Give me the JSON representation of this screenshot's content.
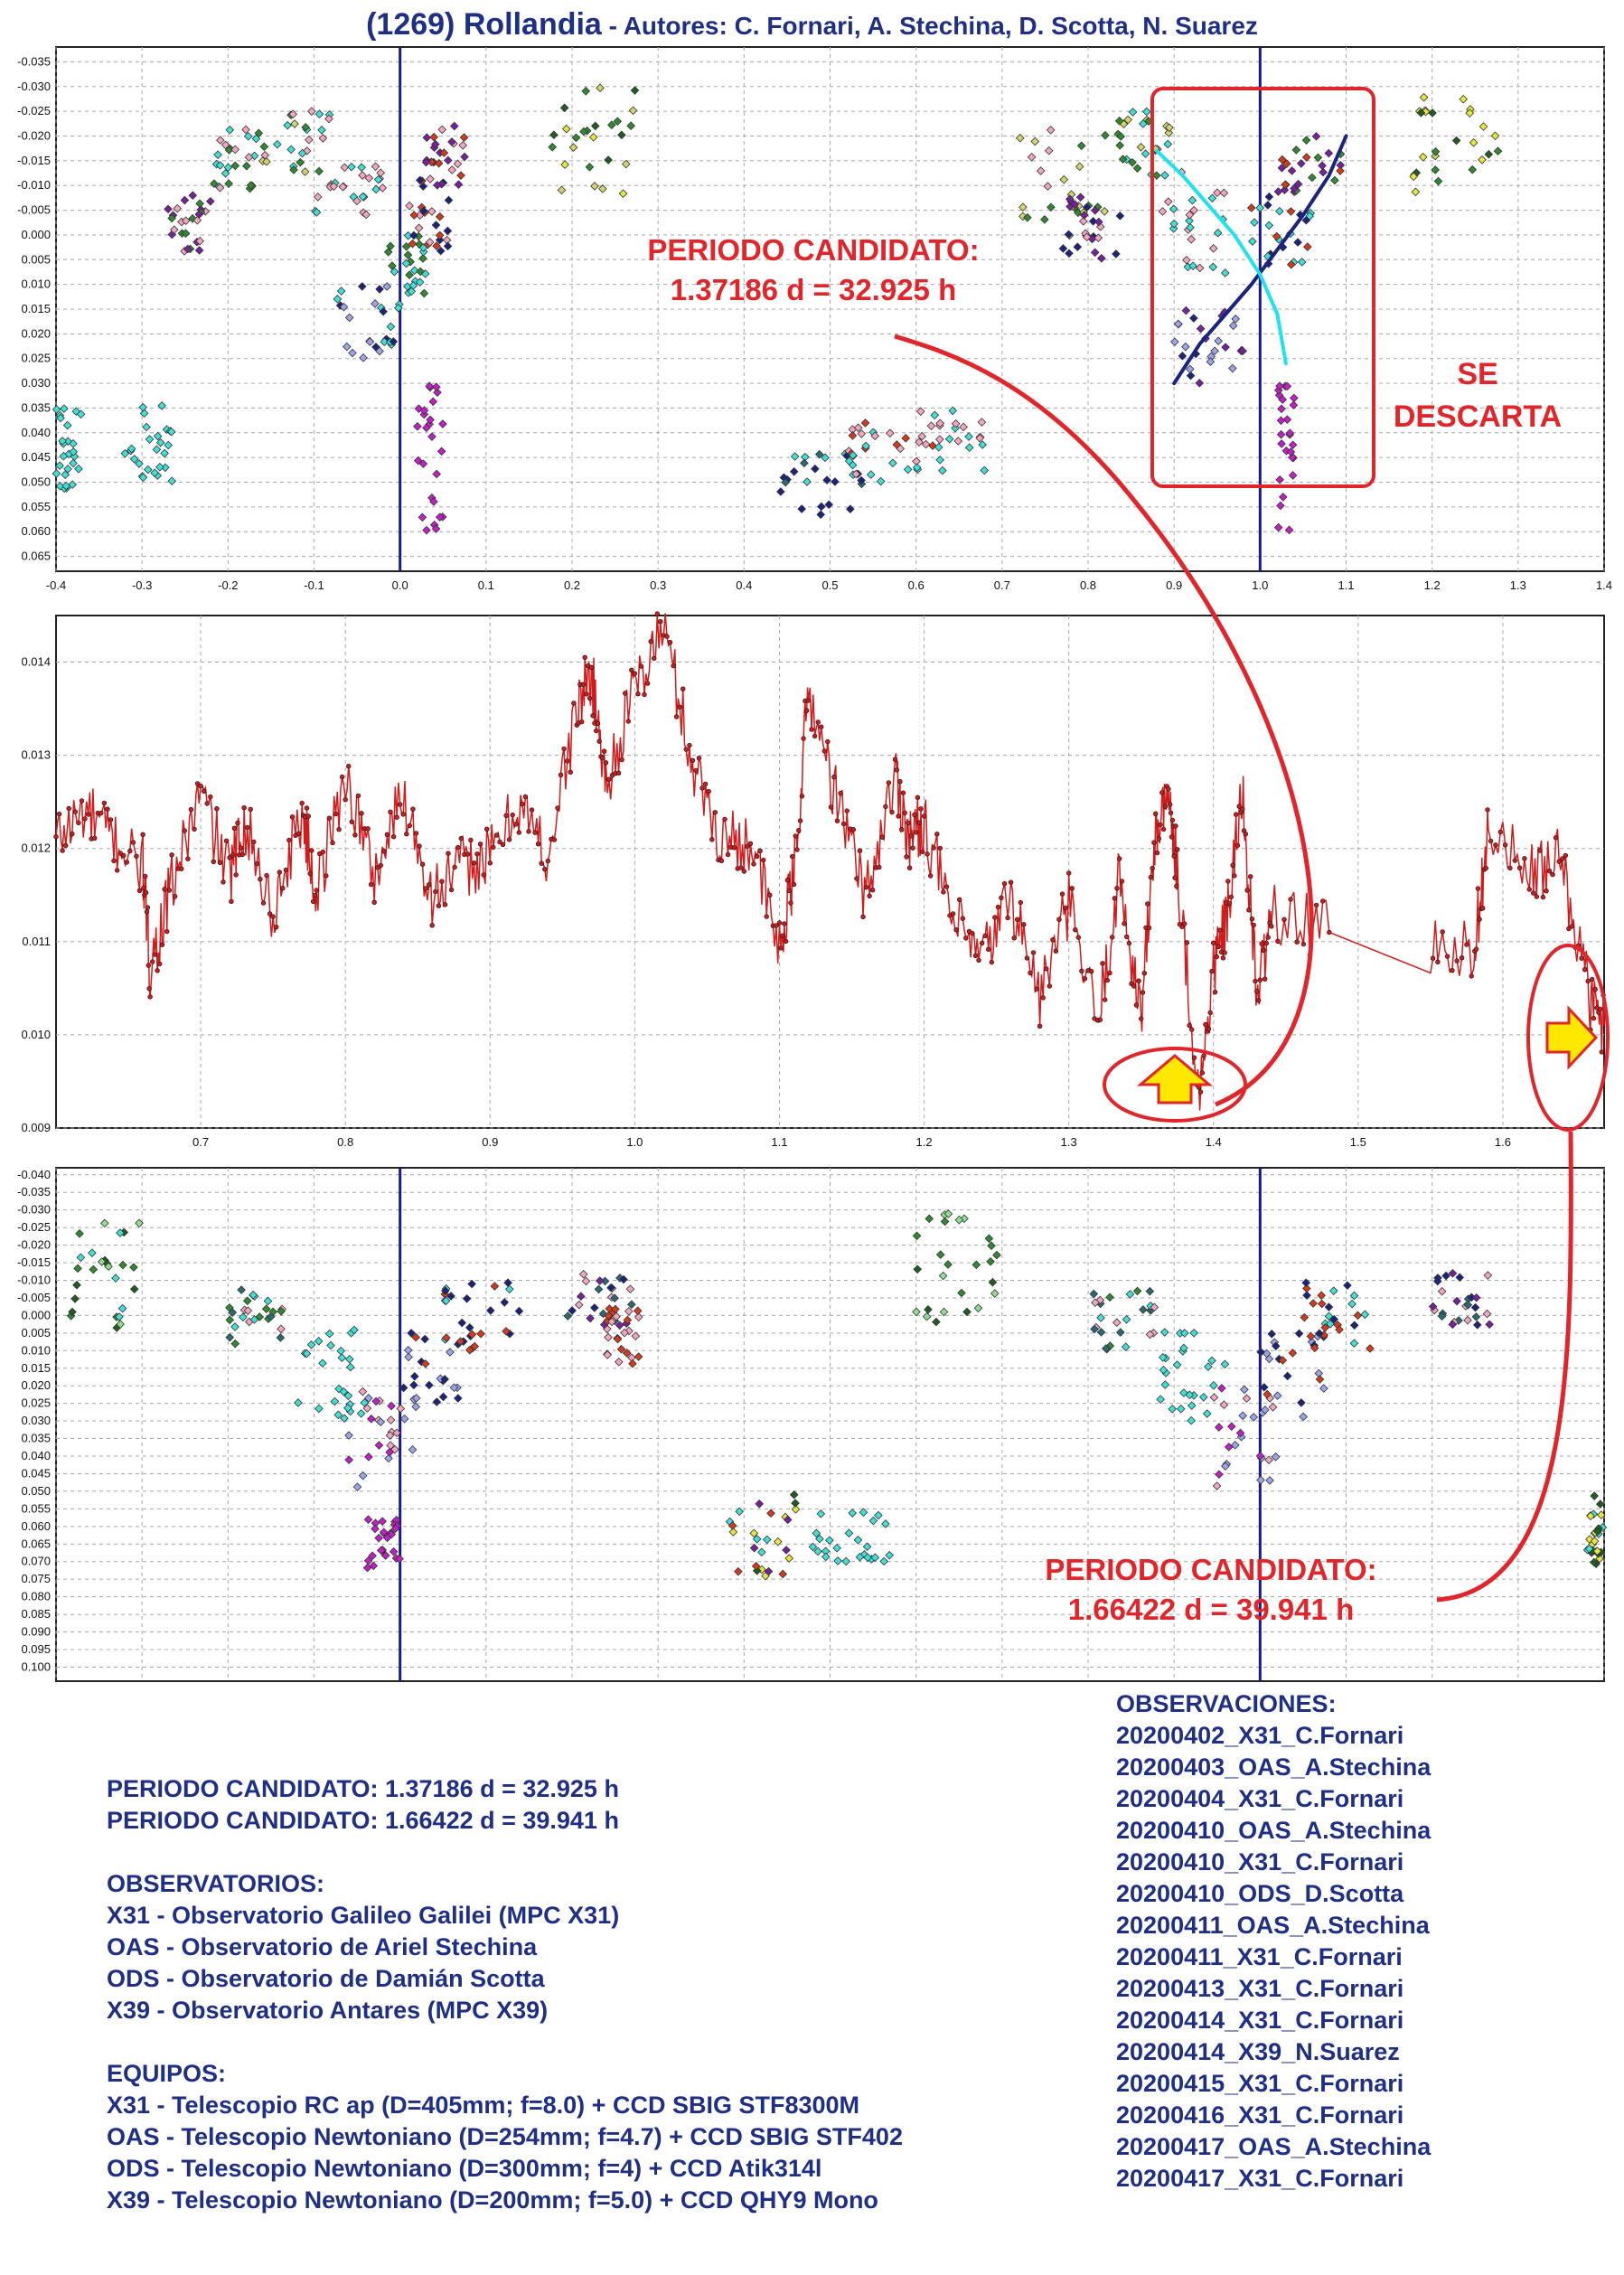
{
  "title": {
    "main": "(1269) Rollandia",
    "authors": " - Autores: C. Fornari, A. Stechina, D. Scotta, N. Suarez"
  },
  "colors": {
    "title_text": "#1f2f86",
    "annotation_red": "#e0262a",
    "phase_marker": "#1a1a8c",
    "fit_dark": "#1a237e",
    "fit_cyan": "#22e1ee",
    "power_line": "#d01c1c",
    "arrow_fill": "#ffe800",
    "arrow_stroke": "#e0262a"
  },
  "annotations": {
    "top_candidate": [
      "PERIODO CANDIDATO:",
      "1.37186 d = 32.925 h"
    ],
    "discard": [
      "SE",
      "DESCARTA"
    ],
    "bottom_candidate": [
      "PERIODO CANDIDATO:",
      "1.66422 d = 39.941 h"
    ]
  },
  "info": {
    "candidates": [
      "PERIODO CANDIDATO: 1.37186 d = 32.925 h",
      "PERIODO CANDIDATO: 1.66422 d = 39.941 h"
    ],
    "observatorios_title": "OBSERVATORIOS:",
    "observatorios": [
      "X31 - Observatorio Galileo Galilei (MPC X31)",
      "OAS - Observatorio de Ariel Stechina",
      "ODS - Observatorio de Damián Scotta",
      "X39 - Observatorio Antares (MPC X39)"
    ],
    "equipos_title": "EQUIPOS:",
    "equipos": [
      "X31 - Telescopio RC ap (D=405mm; f=8.0) + CCD SBIG STF8300M",
      "OAS - Telescopio Newtoniano (D=254mm; f=4.7) + CCD SBIG STF402",
      "ODS - Telescopio Newtoniano (D=300mm; f=4) + CCD Atik314l",
      "X39 - Telescopio Newtoniano (D=200mm; f=5.0) + CCD QHY9 Mono"
    ],
    "observaciones_title": "OBSERVACIONES:",
    "observaciones": [
      "20200402_X31_C.Fornari",
      "20200403_OAS_A.Stechina",
      "20200404_X31_C.Fornari",
      "20200410_OAS_A.Stechina",
      "20200410_X31_C.Fornari",
      "20200410_ODS_D.Scotta",
      "20200411_OAS_A.Stechina",
      "20200411_X31_C.Fornari",
      "20200413_X31_C.Fornari",
      "20200414_X31_C.Fornari",
      "20200414_X39_N.Suarez",
      "20200415_X31_C.Fornari",
      "20200416_X31_C.Fornari",
      "20200417_OAS_A.Stechina",
      "20200417_X31_C.Fornari"
    ]
  },
  "chart_data": [
    {
      "type": "scatter",
      "name": "phase_top",
      "xlim": [
        -0.4,
        1.4
      ],
      "ylim": [
        -0.038,
        0.068
      ],
      "y_inverted": true,
      "grid": true,
      "xticks": [
        -0.4,
        -0.3,
        -0.2,
        -0.1,
        0.0,
        0.1,
        0.2,
        0.3,
        0.4,
        0.5,
        0.6,
        0.7,
        0.8,
        0.9,
        1.0,
        1.1,
        1.2,
        1.3,
        1.4
      ],
      "xtick_labels": [
        "-0.4",
        "-0.3",
        "-0.2",
        "-0.1",
        "0.0",
        "0.1",
        "0.2",
        "0.3",
        "0.4",
        "0.5",
        "0.6",
        "0.7",
        "0.8",
        "0.9",
        "1.0",
        "1.1",
        "1.2",
        "1.3",
        "1.4"
      ],
      "yticks": [
        -0.035,
        -0.03,
        -0.025,
        -0.02,
        -0.015,
        -0.01,
        -0.005,
        0.0,
        0.005,
        0.01,
        0.015,
        0.02,
        0.025,
        0.03,
        0.035,
        0.04,
        0.045,
        0.05,
        0.055,
        0.06,
        0.065
      ],
      "ytick_labels": [
        "-0.035",
        "-0.030",
        "-0.025",
        "-0.020",
        "-0.015",
        "-0.010",
        "-0.005",
        "0.000",
        "0.005",
        "0.010",
        "0.015",
        "0.020",
        "0.025",
        "0.030",
        "0.035",
        "0.040",
        "0.045",
        "0.050",
        "0.055",
        "0.060",
        "0.065"
      ],
      "vlines": [
        0.0,
        1.0
      ],
      "clusters": [
        {
          "x": [
            -0.4,
            -0.37
          ],
          "y": [
            0.035,
            0.052
          ],
          "colors": [
            "#3fe0d8"
          ]
        },
        {
          "x": [
            -0.32,
            -0.26
          ],
          "y": [
            0.033,
            0.05
          ],
          "colors": [
            "#3fe0d8"
          ]
        },
        {
          "x": [
            -0.27,
            -0.22
          ],
          "y": [
            -0.008,
            0.005
          ],
          "colors": [
            "#7a1fa2",
            "#2e8b2e",
            "#f4a6c0"
          ]
        },
        {
          "x": [
            -0.22,
            -0.16
          ],
          "y": [
            -0.022,
            -0.008
          ],
          "colors": [
            "#2e8b2e",
            "#3fe0d8",
            "#f4a6c0"
          ]
        },
        {
          "x": [
            -0.16,
            -0.08
          ],
          "y": [
            -0.025,
            -0.012
          ],
          "colors": [
            "#d4d46a",
            "#f4a6c0",
            "#2e8b2e",
            "#3fe0d8"
          ]
        },
        {
          "x": [
            -0.1,
            -0.02
          ],
          "y": [
            -0.014,
            -0.004
          ],
          "colors": [
            "#3fe0d8",
            "#f4a6c0"
          ]
        },
        {
          "x": [
            -0.08,
            0.0
          ],
          "y": [
            0.01,
            0.025
          ],
          "colors": [
            "#1a237e",
            "#9aa5ee",
            "#3fe0d8"
          ]
        },
        {
          "x": [
            -0.02,
            0.03
          ],
          "y": [
            0.0,
            0.012
          ],
          "colors": [
            "#3fe0d8",
            "#2e8b2e"
          ]
        },
        {
          "x": [
            0.01,
            0.06
          ],
          "y": [
            -0.012,
            0.004
          ],
          "colors": [
            "#1a237e",
            "#d63a1a",
            "#f4a6c0"
          ]
        },
        {
          "x": [
            0.03,
            0.08
          ],
          "y": [
            -0.022,
            -0.01
          ],
          "colors": [
            "#d63a1a",
            "#7a1fa2",
            "#f4a6c0"
          ]
        },
        {
          "x": [
            0.02,
            0.05
          ],
          "y": [
            0.03,
            0.06
          ],
          "colors": [
            "#c41ec8"
          ]
        },
        {
          "x": [
            0.17,
            0.28
          ],
          "y": [
            -0.03,
            -0.008
          ],
          "colors": [
            "#1f5e1f",
            "#e6e63c",
            "#2e8b2e",
            "#d4d46a"
          ]
        },
        {
          "x": [
            0.44,
            0.54
          ],
          "y": [
            0.044,
            0.058
          ],
          "colors": [
            "#1a237e",
            "#2a6a78",
            "#3fe0d8"
          ]
        },
        {
          "x": [
            0.52,
            0.62
          ],
          "y": [
            0.037,
            0.05
          ],
          "colors": [
            "#3fe0d8",
            "#d63a1a",
            "#f4a6c0"
          ]
        },
        {
          "x": [
            0.6,
            0.68
          ],
          "y": [
            0.035,
            0.048
          ],
          "colors": [
            "#3fe0d8",
            "#f4a6c0"
          ]
        },
        {
          "x": [
            0.72,
            0.82
          ],
          "y": [
            -0.022,
            0.0
          ],
          "colors": [
            "#2e8b2e",
            "#f4a6c0",
            "#d4d46a"
          ]
        },
        {
          "x": [
            0.76,
            0.84
          ],
          "y": [
            -0.008,
            0.005
          ],
          "colors": [
            "#7a1fa2",
            "#f4a6c0",
            "#1a237e"
          ]
        },
        {
          "x": [
            0.83,
            0.9
          ],
          "y": [
            -0.025,
            -0.012
          ],
          "colors": [
            "#3fe0d8",
            "#d4d46a",
            "#2e8b2e"
          ]
        },
        {
          "x": [
            0.88,
            0.96
          ],
          "y": [
            -0.014,
            0.008
          ],
          "colors": [
            "#3fe0d8",
            "#f4a6c0"
          ]
        },
        {
          "x": [
            0.9,
            0.98
          ],
          "y": [
            0.015,
            0.03
          ],
          "colors": [
            "#1a237e",
            "#9aa5ee",
            "#7a1fa2"
          ]
        },
        {
          "x": [
            0.98,
            1.06
          ],
          "y": [
            -0.008,
            0.006
          ],
          "colors": [
            "#1a237e",
            "#3fe0d8",
            "#d63a1a"
          ]
        },
        {
          "x": [
            1.02,
            1.1
          ],
          "y": [
            -0.02,
            -0.008
          ],
          "colors": [
            "#d63a1a",
            "#7a1fa2",
            "#2e8b2e"
          ]
        },
        {
          "x": [
            1.02,
            1.04
          ],
          "y": [
            0.03,
            0.06
          ],
          "colors": [
            "#c41ec8"
          ]
        },
        {
          "x": [
            1.17,
            1.28
          ],
          "y": [
            -0.03,
            -0.008
          ],
          "colors": [
            "#1f5e1f",
            "#e6e63c",
            "#2e8b2e",
            "#d4d46a"
          ]
        }
      ],
      "fit_curves": [
        {
          "color": "#1a237e",
          "x": [
            0.9,
            0.93,
            0.96,
            0.99,
            1.02,
            1.05,
            1.08,
            1.1
          ],
          "y": [
            0.03,
            0.022,
            0.016,
            0.01,
            0.003,
            -0.004,
            -0.012,
            -0.02
          ]
        },
        {
          "color": "#22e1ee",
          "x": [
            0.88,
            0.91,
            0.94,
            0.97,
            1.0,
            1.02,
            1.03
          ],
          "y": [
            -0.017,
            -0.012,
            -0.006,
            0.0,
            0.008,
            0.016,
            0.026
          ]
        }
      ]
    },
    {
      "type": "line",
      "name": "periodogram",
      "xlim": [
        0.6,
        1.67
      ],
      "ylim": [
        0.009,
        0.0145
      ],
      "grid": true,
      "xticks": [
        0.7,
        0.8,
        0.9,
        1.0,
        1.1,
        1.2,
        1.3,
        1.4,
        1.5,
        1.6
      ],
      "xtick_labels": [
        "0.7",
        "0.8",
        "0.9",
        "1.0",
        "1.1",
        "1.2",
        "1.3",
        "1.4",
        "1.5",
        "1.6"
      ],
      "yticks": [
        0.009,
        0.01,
        0.011,
        0.012,
        0.013,
        0.014
      ],
      "ytick_labels": [
        "0.009",
        "0.010",
        "0.011",
        "0.012",
        "0.013",
        "0.014"
      ],
      "x": [
        0.6,
        0.62,
        0.64,
        0.66,
        0.665,
        0.68,
        0.7,
        0.72,
        0.73,
        0.75,
        0.77,
        0.78,
        0.8,
        0.82,
        0.84,
        0.86,
        0.88,
        0.9,
        0.92,
        0.94,
        0.96,
        0.97,
        0.98,
        1.0,
        1.02,
        1.04,
        1.06,
        1.08,
        1.1,
        1.11,
        1.12,
        1.14,
        1.16,
        1.18,
        1.19,
        1.2,
        1.22,
        1.24,
        1.26,
        1.28,
        1.3,
        1.32,
        1.335,
        1.35,
        1.36,
        1.37,
        1.375,
        1.39,
        1.4,
        1.41,
        1.42,
        1.43,
        1.44,
        1.48,
        1.55,
        1.58,
        1.59,
        1.62,
        1.64,
        1.66,
        1.67
      ],
      "y": [
        0.0121,
        0.0124,
        0.0121,
        0.0118,
        0.0107,
        0.0116,
        0.0126,
        0.0117,
        0.0123,
        0.0113,
        0.0124,
        0.0115,
        0.0128,
        0.0117,
        0.0126,
        0.0115,
        0.0118,
        0.0119,
        0.0125,
        0.0119,
        0.0135,
        0.0139,
        0.0127,
        0.0137,
        0.0144,
        0.0129,
        0.0121,
        0.0121,
        0.0109,
        0.0117,
        0.0137,
        0.0125,
        0.0115,
        0.0128,
        0.0121,
        0.0123,
        0.0112,
        0.0108,
        0.0115,
        0.0104,
        0.0114,
        0.0101,
        0.0117,
        0.0102,
        0.0122,
        0.0125,
        0.0118,
        0.0093,
        0.0107,
        0.0113,
        0.0126,
        0.0104,
        0.0113,
        0.0111,
        0.011,
        0.0109,
        0.0122,
        0.0117,
        0.0119,
        0.0104,
        0.0101
      ],
      "annotations": [
        "top_candidate",
        "bottom_candidate"
      ]
    },
    {
      "type": "scatter",
      "name": "phase_bottom",
      "xlim": [
        -0.4,
        1.4
      ],
      "ylim": [
        -0.042,
        0.104
      ],
      "y_inverted": true,
      "grid": true,
      "xticks": [
        -0.4,
        -0.3,
        -0.2,
        -0.1,
        0.0,
        0.1,
        0.2,
        0.3,
        0.4,
        0.5,
        0.6,
        0.7,
        0.8,
        0.9,
        1.0,
        1.1,
        1.2,
        1.3,
        1.4
      ],
      "xtick_labels": [
        "-0.4",
        "-0.3",
        "-0.2",
        "-0.1",
        "0.0",
        "0.1",
        "0.2",
        "0.3",
        "0.4",
        "0.5",
        "0.6",
        "0.7",
        "0.8",
        "0.9",
        "1.0",
        "1.1",
        "1.2",
        "1.3",
        "1.4"
      ],
      "yticks": [
        -0.04,
        -0.035,
        -0.03,
        -0.025,
        -0.02,
        -0.015,
        -0.01,
        -0.005,
        0.0,
        0.005,
        0.01,
        0.015,
        0.02,
        0.025,
        0.03,
        0.035,
        0.04,
        0.045,
        0.05,
        0.055,
        0.06,
        0.065,
        0.07,
        0.075,
        0.08,
        0.085,
        0.09,
        0.095,
        0.1
      ],
      "ytick_labels": [
        "-0.040",
        "-0.035",
        "-0.030",
        "-0.025",
        "-0.020",
        "-0.015",
        "-0.010",
        "-0.005",
        "0.000",
        "0.005",
        "0.010",
        "0.015",
        "0.020",
        "0.025",
        "0.030",
        "0.035",
        "0.040",
        "0.045",
        "0.050",
        "0.055",
        "0.060",
        "0.065",
        "0.070",
        "0.075",
        "0.080",
        "0.085",
        "0.090",
        "0.095",
        "0.100"
      ],
      "vlines": [
        0.0,
        1.0
      ],
      "clusters": [
        {
          "x": [
            -0.4,
            -0.3
          ],
          "y": [
            -0.03,
            0.004
          ],
          "colors": [
            "#2e8b2e",
            "#1f5e1f",
            "#8ee08e",
            "#3fe0d8"
          ]
        },
        {
          "x": [
            -0.2,
            -0.12
          ],
          "y": [
            -0.008,
            0.01
          ],
          "colors": [
            "#2a6a78",
            "#3fe0d8",
            "#f4a6c0",
            "#2e8b2e"
          ]
        },
        {
          "x": [
            -0.12,
            -0.04
          ],
          "y": [
            0.004,
            0.03
          ],
          "colors": [
            "#3fe0d8"
          ]
        },
        {
          "x": [
            -0.06,
            0.02
          ],
          "y": [
            0.02,
            0.05
          ],
          "colors": [
            "#f4a6c0",
            "#9aa5ee",
            "#c41ec8"
          ]
        },
        {
          "x": [
            -0.04,
            0.0
          ],
          "y": [
            0.058,
            0.072
          ],
          "colors": [
            "#c41ec8"
          ]
        },
        {
          "x": [
            0.0,
            0.08
          ],
          "y": [
            0.005,
            0.03
          ],
          "colors": [
            "#1a237e",
            "#9aa5ee",
            "#d63a1a"
          ]
        },
        {
          "x": [
            0.05,
            0.14
          ],
          "y": [
            -0.01,
            0.01
          ],
          "colors": [
            "#1a237e",
            "#3fe0d8",
            "#d63a1a"
          ]
        },
        {
          "x": [
            0.19,
            0.27
          ],
          "y": [
            -0.012,
            0.004
          ],
          "colors": [
            "#7a1fa2",
            "#1a237e",
            "#f4a6c0",
            "#2a6a78"
          ]
        },
        {
          "x": [
            0.24,
            0.28
          ],
          "y": [
            -0.002,
            0.014
          ],
          "colors": [
            "#f4a6c0",
            "#d63a1a"
          ]
        },
        {
          "x": [
            0.38,
            0.46
          ],
          "y": [
            0.05,
            0.075
          ],
          "colors": [
            "#e6e63c",
            "#1f5e1f",
            "#3fe0d8",
            "#7a1fa2",
            "#d63a1a"
          ]
        },
        {
          "x": [
            0.48,
            0.58
          ],
          "y": [
            0.055,
            0.07
          ],
          "colors": [
            "#3fe0d8"
          ]
        },
        {
          "x": [
            0.6,
            0.7
          ],
          "y": [
            -0.03,
            0.004
          ],
          "colors": [
            "#2e8b2e",
            "#1f5e1f",
            "#8ee08e"
          ]
        },
        {
          "x": [
            0.8,
            0.88
          ],
          "y": [
            -0.008,
            0.01
          ],
          "colors": [
            "#2a6a78",
            "#3fe0d8",
            "#f4a6c0",
            "#2e8b2e"
          ]
        },
        {
          "x": [
            0.88,
            0.96
          ],
          "y": [
            0.004,
            0.03
          ],
          "colors": [
            "#3fe0d8"
          ]
        },
        {
          "x": [
            0.94,
            1.02
          ],
          "y": [
            0.02,
            0.05
          ],
          "colors": [
            "#f4a6c0",
            "#9aa5ee",
            "#c41ec8"
          ]
        },
        {
          "x": [
            1.0,
            1.08
          ],
          "y": [
            0.005,
            0.03
          ],
          "colors": [
            "#1a237e",
            "#9aa5ee",
            "#d63a1a"
          ]
        },
        {
          "x": [
            1.05,
            1.14
          ],
          "y": [
            -0.01,
            0.01
          ],
          "colors": [
            "#1a237e",
            "#3fe0d8",
            "#d63a1a"
          ]
        },
        {
          "x": [
            1.19,
            1.27
          ],
          "y": [
            -0.012,
            0.004
          ],
          "colors": [
            "#7a1fa2",
            "#1a237e",
            "#f4a6c0",
            "#2a6a78"
          ]
        },
        {
          "x": [
            1.38,
            1.4
          ],
          "y": [
            0.05,
            0.072
          ],
          "colors": [
            "#e6e63c",
            "#1f5e1f",
            "#3fe0d8"
          ]
        }
      ]
    }
  ]
}
